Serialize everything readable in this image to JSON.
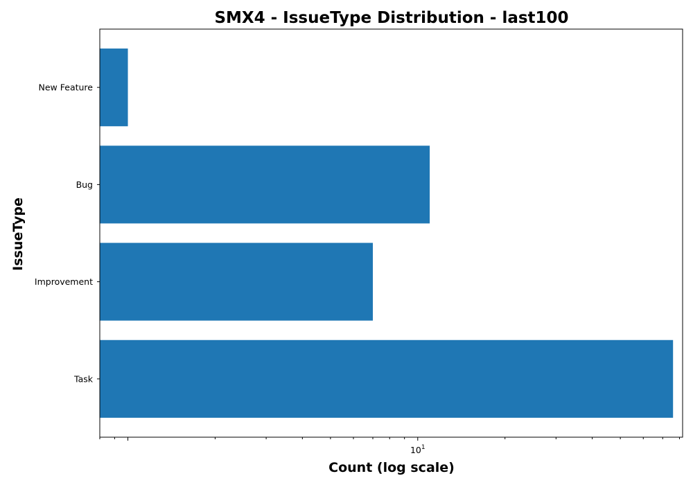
{
  "chart_data": {
    "type": "bar",
    "orientation": "horizontal",
    "title": "SMX4 - IssueType Distribution - last100",
    "xlabel": "Count (log scale)",
    "ylabel": "IssueType",
    "x_scale": "log",
    "x_tick_major": {
      "base": "10",
      "exponent": "1"
    },
    "categories": [
      "Task",
      "Improvement",
      "Bug",
      "New Feature"
    ],
    "values": [
      76,
      7,
      11,
      1
    ],
    "xlim": [
      0.8,
      82
    ],
    "bar_color": "#1f77b4",
    "grid": false
  }
}
